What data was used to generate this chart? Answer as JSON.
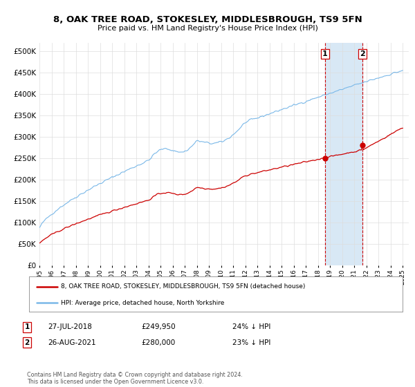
{
  "title": "8, OAK TREE ROAD, STOKESLEY, MIDDLESBROUGH, TS9 5FN",
  "subtitle": "Price paid vs. HM Land Registry's House Price Index (HPI)",
  "legend_line1": "8, OAK TREE ROAD, STOKESLEY, MIDDLESBROUGH, TS9 5FN (detached house)",
  "legend_line2": "HPI: Average price, detached house, North Yorkshire",
  "annotation1": {
    "num": "1",
    "date": "27-JUL-2018",
    "price": "£249,950",
    "pct": "24% ↓ HPI"
  },
  "annotation2": {
    "num": "2",
    "date": "26-AUG-2021",
    "price": "£280,000",
    "pct": "23% ↓ HPI"
  },
  "footer": "Contains HM Land Registry data © Crown copyright and database right 2024.\nThis data is licensed under the Open Government Licence v3.0.",
  "hpi_color": "#7ab8e8",
  "property_color": "#cc0000",
  "background_color": "#ffffff",
  "grid_color": "#dddddd",
  "shade_color": "#d8e8f5",
  "vline_color": "#cc0000",
  "box_edge_color": "#cc0000",
  "ylim": [
    0,
    520000
  ],
  "yticks": [
    0,
    50000,
    100000,
    150000,
    200000,
    250000,
    300000,
    350000,
    400000,
    450000,
    500000
  ],
  "vline1_x": 2018.58,
  "vline2_x": 2021.67,
  "marker1_x": 2018.58,
  "marker1_y": 249950,
  "marker2_x": 2021.67,
  "marker2_y": 280000,
  "xmin": 1995.0,
  "xmax": 2025.5
}
